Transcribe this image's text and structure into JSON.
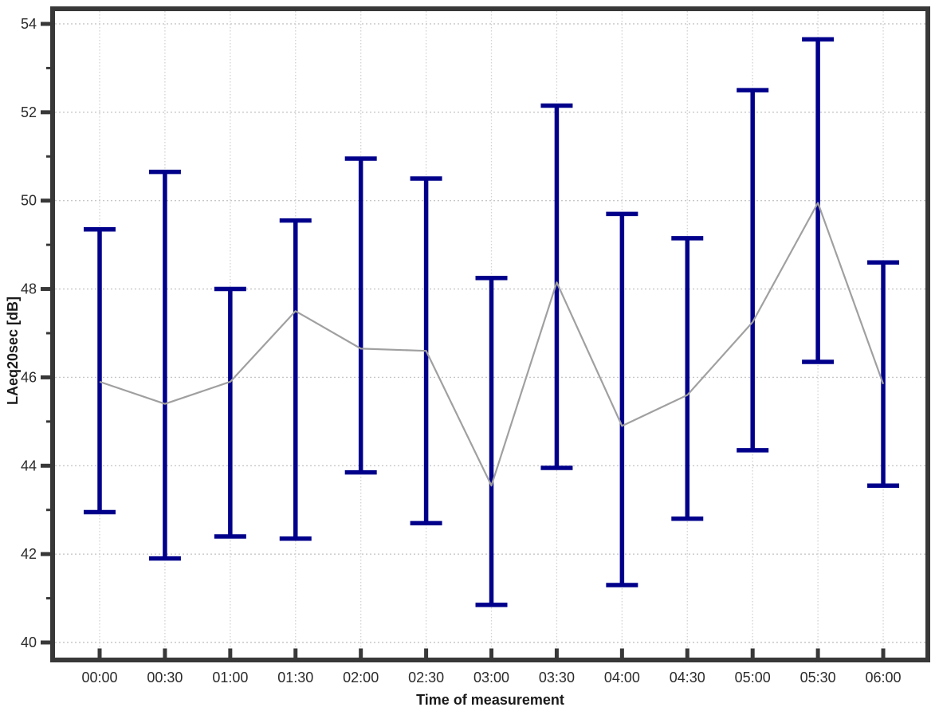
{
  "chart_data": {
    "type": "errorbar-line",
    "title": "",
    "xlabel": "Time of measurement",
    "ylabel": "LAeq20sec [dB]",
    "categories": [
      "00:00",
      "00:30",
      "01:00",
      "01:30",
      "02:00",
      "02:30",
      "03:00",
      "03:30",
      "04:00",
      "04:30",
      "05:00",
      "05:30",
      "06:00"
    ],
    "series": [
      {
        "name": "error_bars",
        "type": "errorbar",
        "color": "#00008B",
        "high": [
          49.35,
          50.65,
          48.0,
          49.55,
          50.95,
          50.5,
          48.25,
          52.15,
          49.7,
          49.15,
          52.5,
          53.65,
          48.6
        ],
        "low": [
          42.95,
          41.9,
          42.4,
          42.35,
          43.85,
          42.7,
          40.85,
          43.95,
          41.3,
          42.8,
          44.35,
          46.35,
          43.55
        ]
      },
      {
        "name": "mean_line",
        "type": "line",
        "color": "#a0a0a0",
        "values": [
          45.9,
          45.4,
          45.9,
          47.5,
          46.65,
          46.6,
          43.55,
          48.15,
          44.9,
          45.6,
          47.25,
          49.95,
          45.85
        ]
      }
    ],
    "ylim": [
      39.55,
      54.4
    ],
    "yticks_major": [
      40,
      42,
      44,
      46,
      48,
      50,
      52,
      54
    ],
    "yticks_minor": [
      41,
      43,
      45,
      47,
      49,
      51,
      53
    ],
    "grid": {
      "horizontal": "dotted",
      "vertical": "dotted"
    },
    "legend": "none"
  },
  "colors": {
    "error_bar": "#00008B",
    "mean_line": "#a0a0a0",
    "frame": "#383838",
    "tick": "#383838",
    "grid_horizontal": "#c7c7c7",
    "grid_vertical": "#d2d2d2",
    "tick_label": "#2b2b2b",
    "axis_title": "#1a1a1a",
    "background": "#ffffff"
  }
}
